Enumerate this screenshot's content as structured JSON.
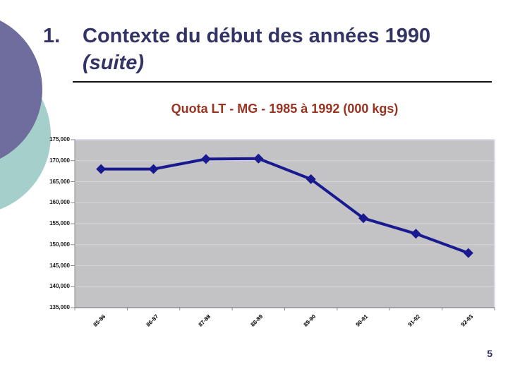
{
  "slide": {
    "number_label": "1.",
    "title_line1": "Contexte du début des années 1990",
    "title_line2": "(suite)",
    "page_number": "5"
  },
  "colors": {
    "title_text": "#333366",
    "chart_title": "#993322",
    "series": "#1a1a90",
    "plot_bg": "#c3c3c5",
    "gridline": "#d3d3d7",
    "plot_edge_highlight": "#dcdcec",
    "axis_line": "#8f8f93",
    "tick_mark": "#88888c",
    "decor_purple": "#6e6d9d",
    "decor_teal": "#a5cfca"
  },
  "chart_data": {
    "type": "line",
    "title": "Quota LT - MG  -  1985 à 1992 (000 kgs)",
    "categories": [
      "85-86",
      "86-87",
      "87-88",
      "88-89",
      "89-90",
      "90-91",
      "91-92",
      "92-93"
    ],
    "series": [
      {
        "name": "Quota LT - MG",
        "values": [
          168000,
          168000,
          170400,
          170500,
          165600,
          156300,
          152600,
          148000
        ]
      }
    ],
    "xlabel": "",
    "ylabel": "",
    "ylim": [
      135000,
      175000
    ],
    "ytick_step": 5000,
    "ytick_labels": [
      "135,000",
      "140,000",
      "145,000",
      "150,000",
      "155,000",
      "160,000",
      "165,000",
      "170,000",
      "175,000"
    ],
    "grid": true,
    "legend_position": "none",
    "marker": "diamond"
  }
}
